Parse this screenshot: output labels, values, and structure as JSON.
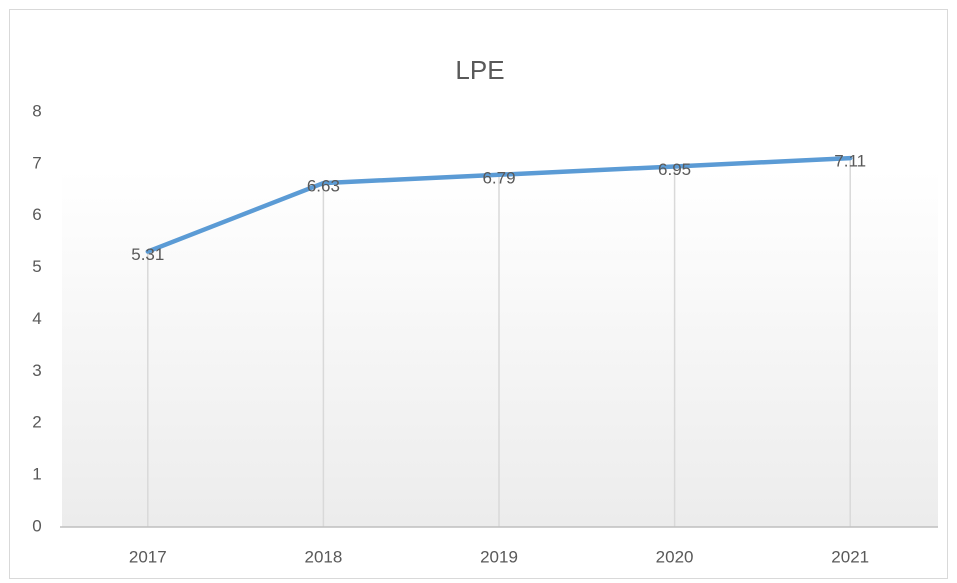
{
  "chart_data": {
    "type": "line",
    "title": "LPE",
    "categories": [
      "2017",
      "2018",
      "2019",
      "2020",
      "2021"
    ],
    "values": [
      5.31,
      6.63,
      6.79,
      6.95,
      7.11
    ],
    "color": "#5b9bd5",
    "ylim": [
      0,
      8
    ],
    "yticks": [
      0,
      1,
      2,
      3,
      4,
      5,
      6,
      7,
      8
    ],
    "drop_lines": true
  }
}
